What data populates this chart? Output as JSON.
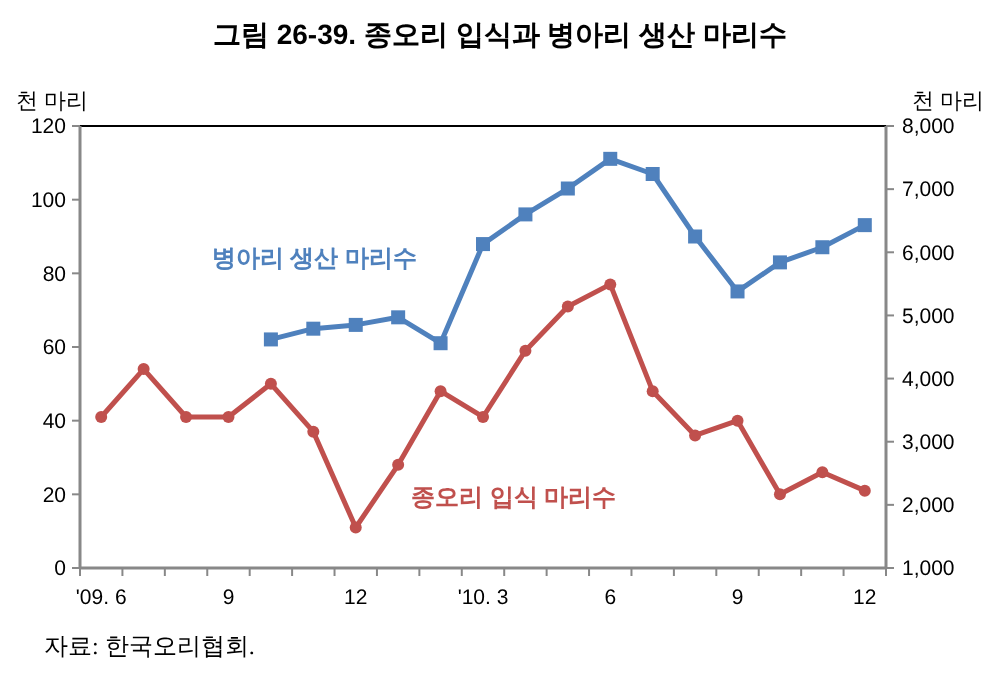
{
  "chart_data": {
    "type": "line",
    "title": "그림 26-39.  종오리 입식과 병아리 생산 마리수",
    "ylabel": "천 마리",
    "y2label": "천 마리",
    "categories": [
      "'09. 6",
      null,
      null,
      "9",
      null,
      null,
      "12",
      null,
      null,
      "'10. 3",
      null,
      null,
      "6",
      null,
      null,
      "9",
      null,
      null,
      "12"
    ],
    "series": [
      {
        "name": "종오리 입식 마리수",
        "color": "#c0504d",
        "marker": "circle",
        "values": [
          41,
          54,
          41,
          41,
          50,
          37,
          11,
          28,
          48,
          41,
          59,
          71,
          77,
          48,
          36,
          40,
          20,
          26,
          21
        ]
      },
      {
        "name": "병아리 생산 마리수",
        "color": "#4f81bd",
        "marker": "square",
        "axis": "y2",
        "values": [
          null,
          null,
          null,
          null,
          4620,
          4790,
          4850,
          4970,
          4560,
          6130,
          6600,
          7010,
          7480,
          7240,
          6250,
          5380,
          5840,
          6080,
          6430
        ]
      }
    ],
    "ylim": [
      0,
      120
    ],
    "yticks": [
      0,
      20,
      40,
      60,
      80,
      100,
      120
    ],
    "y2lim": [
      1000,
      8000
    ],
    "y2ticks": [
      {
        "value": 1000,
        "label": "1,000"
      },
      {
        "value": 2000,
        "label": "2,000"
      },
      {
        "value": 3000,
        "label": "3,000"
      },
      {
        "value": 4000,
        "label": "4,000"
      },
      {
        "value": 5000,
        "label": "5,000"
      },
      {
        "value": 6000,
        "label": "6,000"
      },
      {
        "value": 7000,
        "label": "7,000"
      },
      {
        "value": 8000,
        "label": "8,000"
      }
    ],
    "grid": false,
    "line_style": "solid",
    "annotations": [
      "자료: 한국오리협회."
    ]
  }
}
